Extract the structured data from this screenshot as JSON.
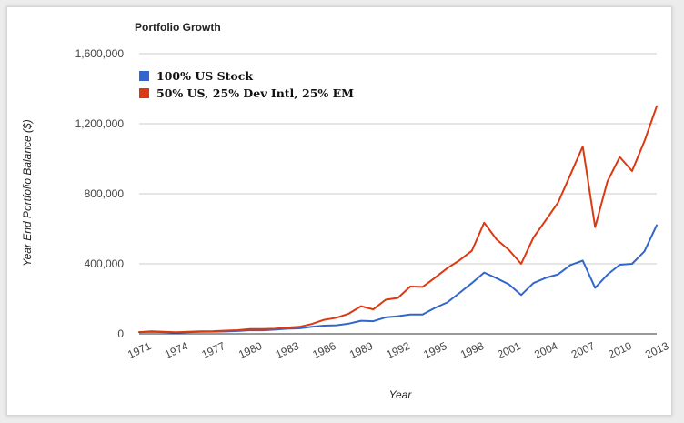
{
  "chart_data": {
    "type": "line",
    "title": "Portfolio Growth",
    "xlabel": "Year",
    "ylabel": "Year End Portfolio Balance ($)",
    "ylim": [
      0,
      1600000
    ],
    "xlim": [
      1971,
      2013
    ],
    "y_ticks": [
      {
        "value": 0,
        "label": "0"
      },
      {
        "value": 400000,
        "label": "400,000"
      },
      {
        "value": 800000,
        "label": "800,000"
      },
      {
        "value": 1200000,
        "label": "1,200,000"
      },
      {
        "value": 1600000,
        "label": "1,600,000"
      }
    ],
    "x_ticks": [
      "1971",
      "1974",
      "1977",
      "1980",
      "1983",
      "1986",
      "1989",
      "1992",
      "1995",
      "1998",
      "2001",
      "2004",
      "2007",
      "2010",
      "2013"
    ],
    "grid": true,
    "legend_position": "top-left",
    "x": [
      1971,
      1972,
      1973,
      1974,
      1975,
      1976,
      1977,
      1978,
      1979,
      1980,
      1981,
      1982,
      1983,
      1984,
      1985,
      1986,
      1987,
      1988,
      1989,
      1990,
      1991,
      1992,
      1993,
      1994,
      1995,
      1996,
      1997,
      1998,
      1999,
      2000,
      2001,
      2002,
      2003,
      2004,
      2005,
      2006,
      2007,
      2008,
      2009,
      2010,
      2011,
      2012,
      2013
    ],
    "series": [
      {
        "name": "100% US Stock",
        "color": "#3366cc",
        "values": [
          10000,
          12000,
          10000,
          7500,
          10000,
          12000,
          12500,
          13500,
          16000,
          21000,
          20000,
          24000,
          29000,
          31000,
          40000,
          47000,
          49000,
          58000,
          75000,
          72000,
          94000,
          101000,
          110000,
          110000,
          148000,
          179000,
          234000,
          290000,
          350000,
          318000,
          283000,
          222000,
          290000,
          320000,
          340000,
          393000,
          418000,
          263000,
          338000,
          395000,
          400000,
          471000,
          620000
        ]
      },
      {
        "name": "50% US, 25% Dev Intl, 25% EM",
        "color": "#dc3912",
        "values": [
          10000,
          14000,
          12000,
          9000,
          12000,
          14000,
          15000,
          18000,
          21000,
          27000,
          27000,
          29000,
          36000,
          40000,
          56000,
          80000,
          92000,
          115000,
          158000,
          140000,
          195000,
          205000,
          270000,
          268000,
          320000,
          375000,
          420000,
          475000,
          635000,
          540000,
          480000,
          400000,
          550000,
          650000,
          750000,
          910000,
          1070000,
          610000,
          870000,
          1010000,
          930000,
          1100000,
          1300000
        ]
      }
    ]
  }
}
